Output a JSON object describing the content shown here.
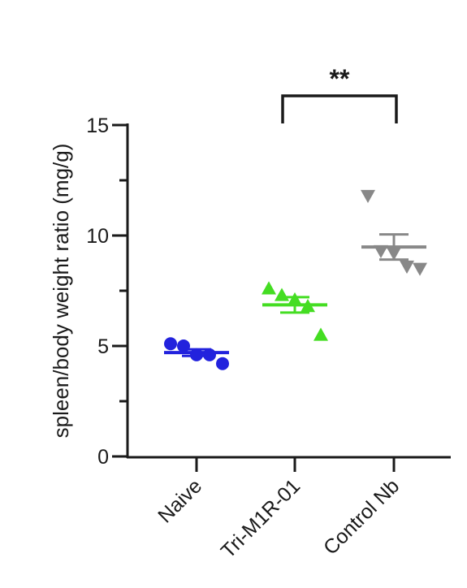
{
  "chart_data": {
    "type": "scatter",
    "ylabel": "spleen/body weight ratio (mg/g)",
    "xlabel": "",
    "ylim": [
      0,
      15
    ],
    "yticks": [
      0,
      5,
      10,
      15
    ],
    "grid": false,
    "categories": [
      "Naive",
      "Tri-M1R-01",
      "Control Nb"
    ],
    "groups": [
      {
        "category": "Naive",
        "color": "#2222dd",
        "marker": "circle",
        "points": [
          5.1,
          5.0,
          4.6,
          4.6,
          4.2
        ],
        "mean": 4.7,
        "sem": 0.15
      },
      {
        "category": "Tri-M1R-01",
        "color": "#44dd22",
        "marker": "triangle-up",
        "points": [
          7.6,
          7.3,
          7.1,
          6.8,
          5.5
        ],
        "mean": 6.86,
        "sem": 0.35
      },
      {
        "category": "Control Nb",
        "color": "#888888",
        "marker": "triangle-down",
        "points": [
          11.8,
          9.3,
          9.2,
          8.6,
          8.5
        ],
        "mean": 9.48,
        "sem": 0.57
      }
    ],
    "significance": {
      "from": "Tri-M1R-01",
      "to": "Control Nb",
      "label": "**"
    }
  }
}
